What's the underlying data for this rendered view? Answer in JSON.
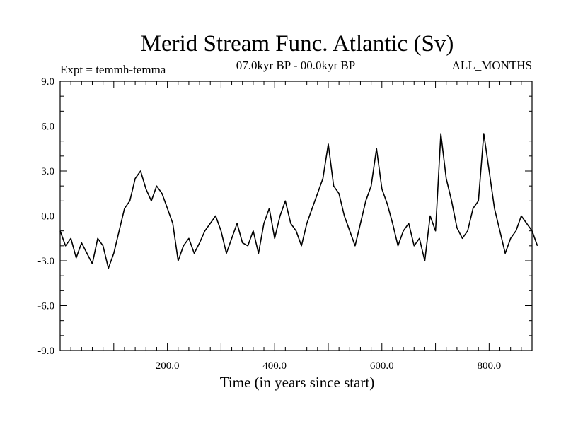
{
  "chart_data": {
    "type": "line",
    "title": "Merid Stream Func. Atlantic (Sv)",
    "subtitle_left": "Expt = temmh-temma",
    "subtitle_center": "07.0kyr BP - 00.0kyr BP",
    "subtitle_right": "ALL_MONTHS",
    "xlabel": "Time (in years since start)",
    "ylabel": "",
    "xlim": [
      0,
      880
    ],
    "ylim": [
      -9.0,
      9.0
    ],
    "x_ticks": [
      200.0,
      400.0,
      600.0,
      800.0
    ],
    "x_tick_labels": [
      "200.0",
      "400.0",
      "600.0",
      "800.0"
    ],
    "y_ticks": [
      -9.0,
      -6.0,
      -3.0,
      0.0,
      3.0,
      6.0,
      9.0
    ],
    "y_tick_labels": [
      "-9.0",
      "-6.0",
      "-3.0",
      "0.0",
      "3.0",
      "6.0",
      "9.0"
    ],
    "zero_line": true,
    "series": [
      {
        "name": "temmh-temma",
        "x_step": 10,
        "x_start": 0,
        "values": [
          -1.0,
          -2.0,
          -1.5,
          -2.8,
          -1.8,
          -2.5,
          -3.2,
          -1.5,
          -2.0,
          -3.5,
          -2.5,
          -1.0,
          0.5,
          1.0,
          2.5,
          3.0,
          1.8,
          1.0,
          2.0,
          1.5,
          0.5,
          -0.5,
          -3.0,
          -2.0,
          -1.5,
          -2.5,
          -1.8,
          -1.0,
          -0.5,
          0.0,
          -1.0,
          -2.5,
          -1.5,
          -0.5,
          -1.8,
          -2.0,
          -1.0,
          -2.5,
          -0.5,
          0.5,
          -1.5,
          0.0,
          1.0,
          -0.5,
          -1.0,
          -2.0,
          -0.5,
          0.5,
          1.5,
          2.5,
          4.8,
          2.0,
          1.5,
          0.0,
          -1.0,
          -2.0,
          -0.5,
          1.0,
          2.0,
          4.5,
          1.8,
          0.8,
          -0.5,
          -2.0,
          -1.0,
          -0.5,
          -2.0,
          -1.5,
          -3.0,
          0.0,
          -1.0,
          5.5,
          2.5,
          1.0,
          -0.8,
          -1.5,
          -1.0,
          0.5,
          1.0,
          5.5,
          3.0,
          0.5,
          -1.0,
          -2.5,
          -1.5,
          -1.0,
          0.0,
          -0.5,
          -1.0,
          -2.0
        ]
      }
    ],
    "line_color": "#000000"
  }
}
